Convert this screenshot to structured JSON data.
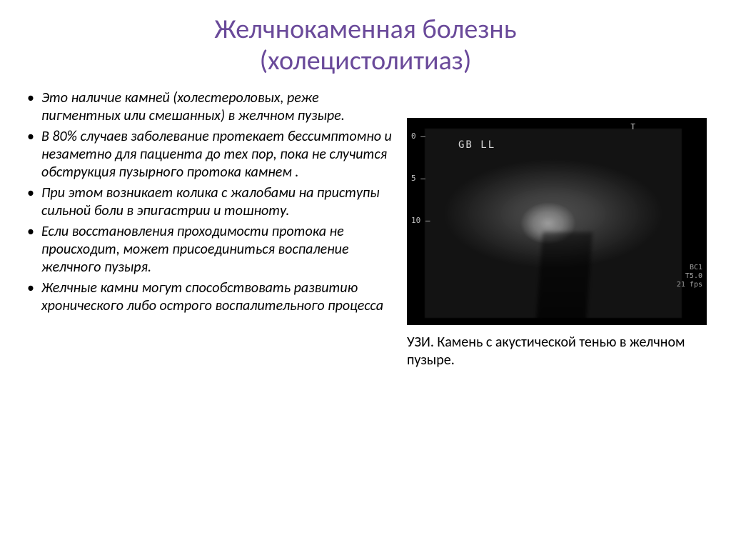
{
  "title_line1": "Желчнокаменная болезнь",
  "title_line2": "(холецистолитиаз)",
  "bullets": [
    "Это наличие камней (холестероловых, реже пигментных или смешанных) в желчном пузыре.",
    "В 80% случаев заболевание протекает бессимптомно и незаметно для пациента до тех пор, пока не случится обструкция пузырного протока камнем .",
    " При этом возникает колика с жалобами на приступы сильной боли в эпигастрии и тошноту.",
    "Если восстановления проходимости протока не происходит, может присоединиться воспаление желчного пузыря.",
    "Желчные камни могут способствовать развитию хронического либо острого воспалительного процесса"
  ],
  "ultrasound": {
    "scale": [
      "0 –",
      "5 –",
      "10 –"
    ],
    "label": "GB LL",
    "top_marker": "T",
    "meta": [
      "BC1",
      "T5.0",
      "",
      "21 fps"
    ]
  },
  "caption": "УЗИ. Камень с акустической тенью в желчном пузыре.",
  "colors": {
    "title": "#6a4a9a",
    "text": "#000000",
    "background": "#ffffff",
    "us_background": "#000000",
    "us_text": "#c0c0c0"
  },
  "fonts": {
    "title_size": 38,
    "body_size": 20,
    "body_style": "italic"
  }
}
